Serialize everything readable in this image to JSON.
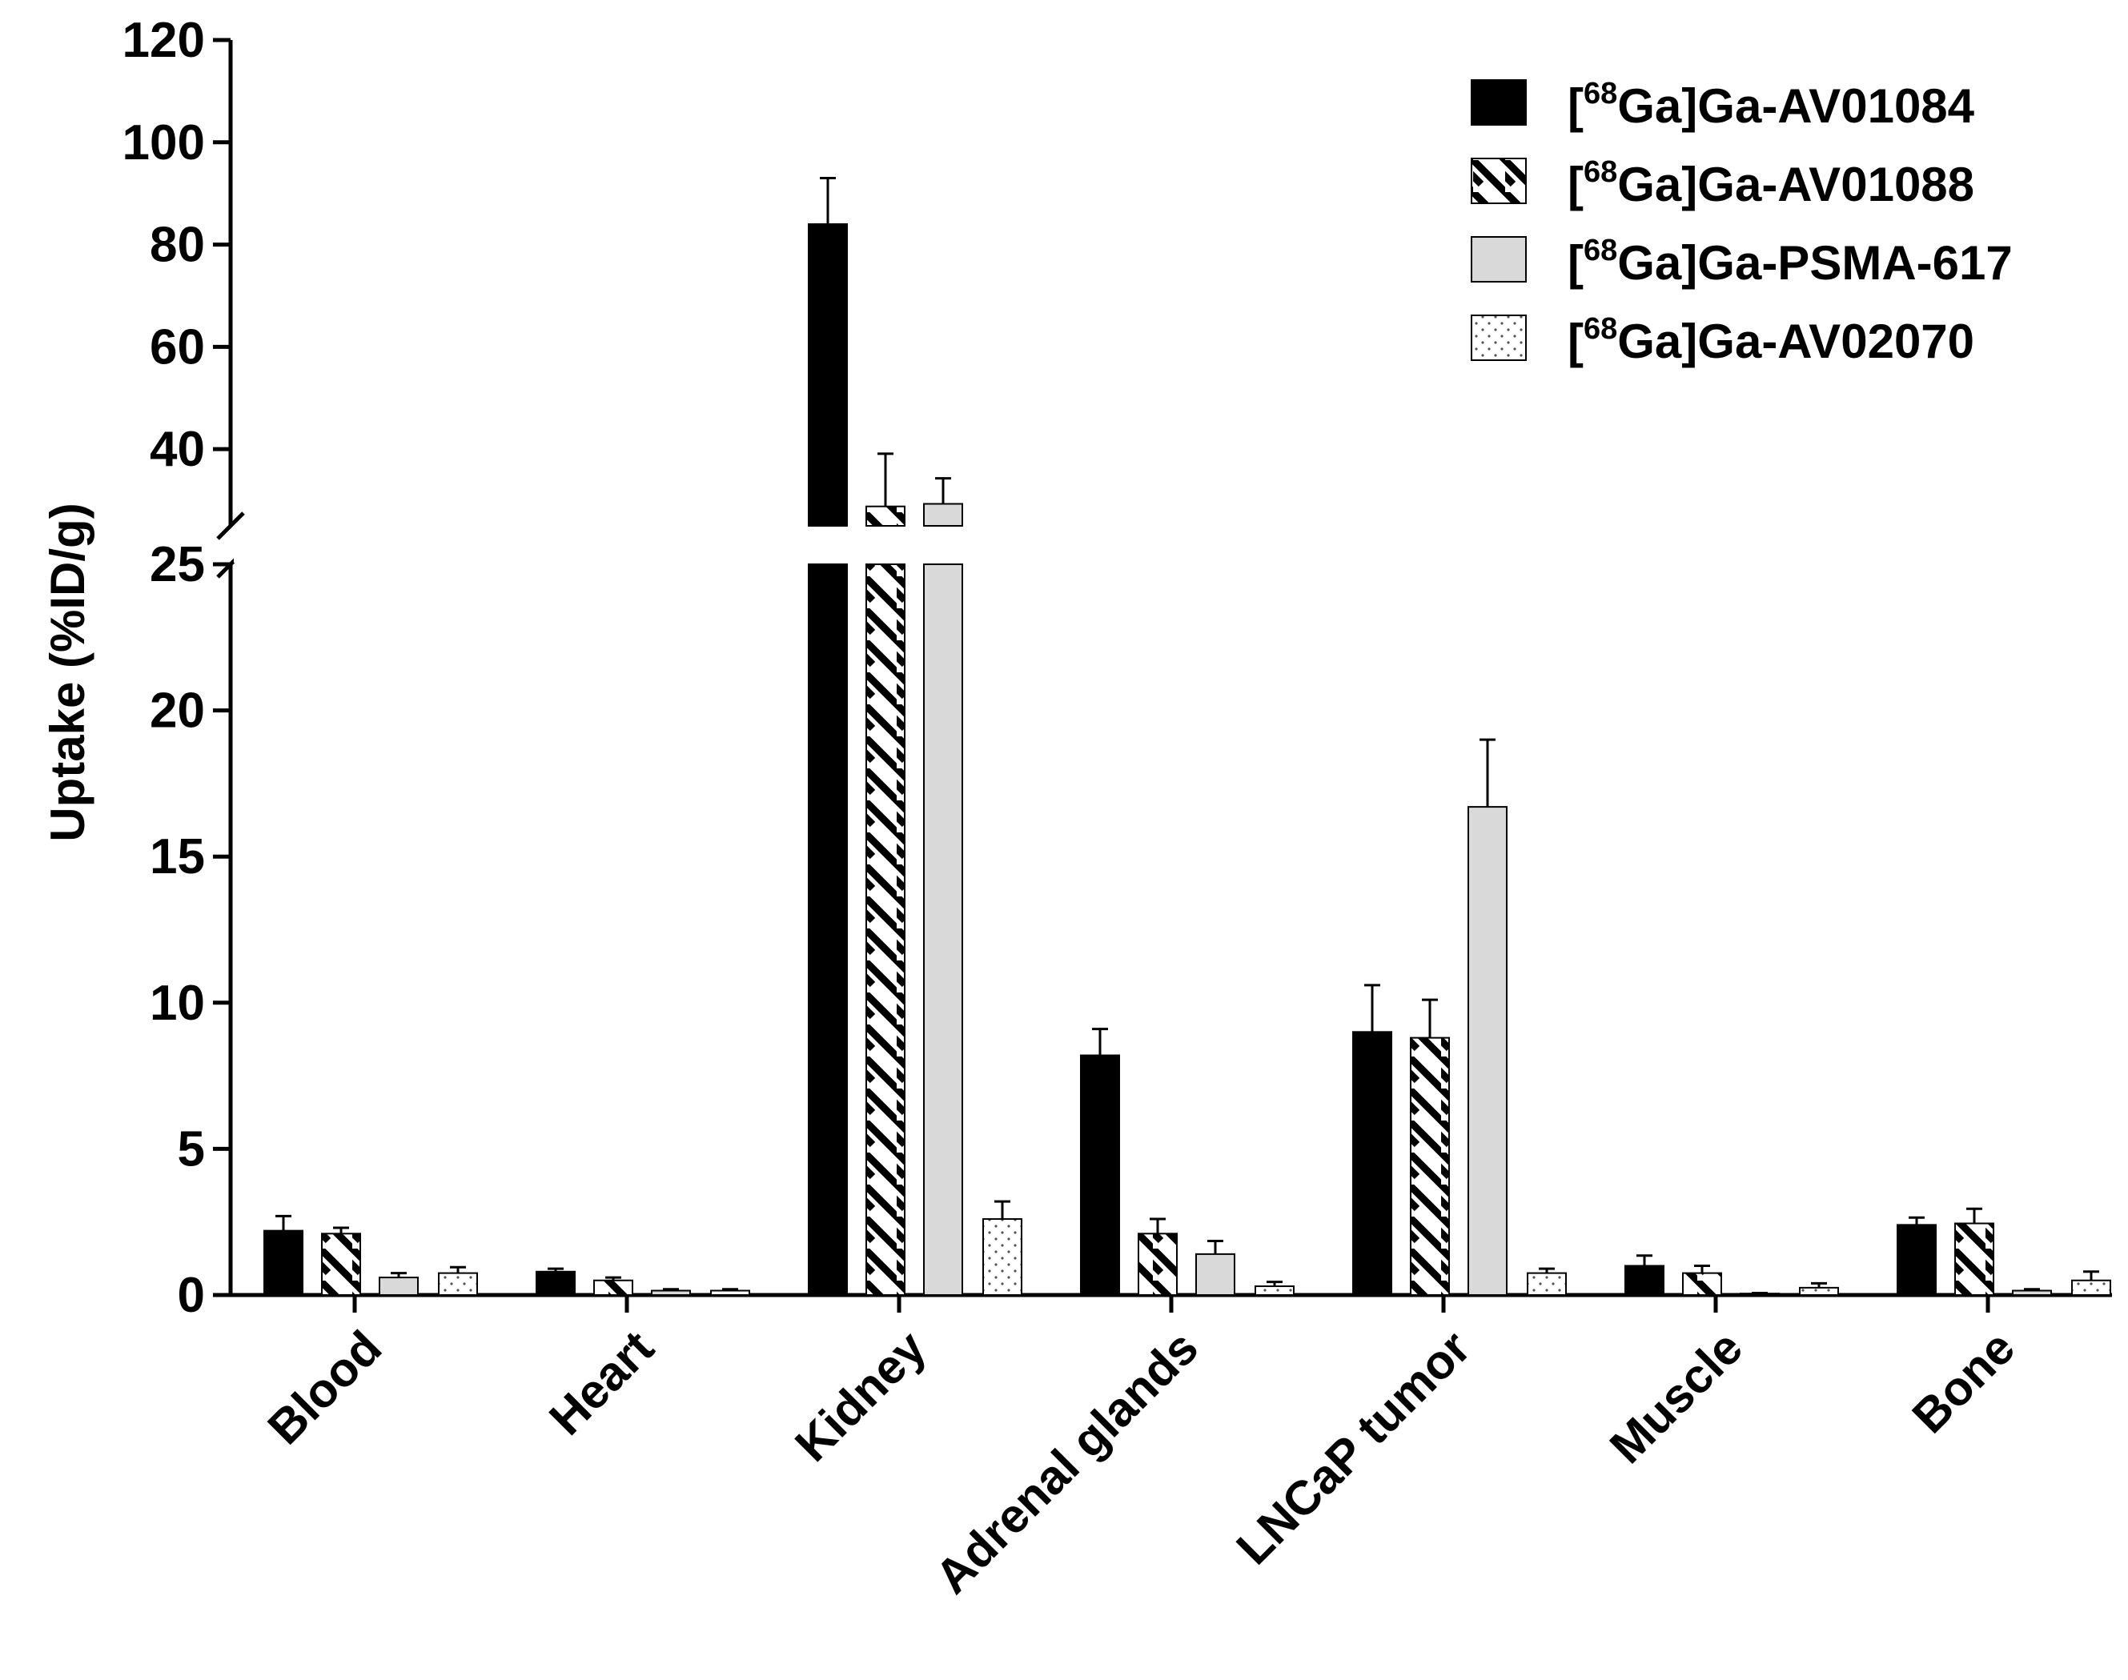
{
  "chart_data": {
    "type": "bar",
    "title": "",
    "xlabel": "",
    "ylabel": "Uptake (%ID/g)",
    "y_axis_break": {
      "lower_range": [
        0,
        25
      ],
      "upper_range": [
        25,
        120
      ],
      "lower_ticks": [
        "0",
        "5",
        "10",
        "15",
        "20",
        "25"
      ],
      "upper_ticks": [
        "40",
        "60",
        "80",
        "100",
        "120"
      ]
    },
    "categories": [
      "Blood",
      "Heart",
      "Kidney",
      "Adrenal glands",
      "LNCaP tumor",
      "Muscle",
      "Bone"
    ],
    "series": [
      {
        "sup": "68",
        "name": "[68Ga]Ga-AV01084",
        "label_rest": "Ga]Ga-AV01084",
        "pattern": "solid-black",
        "values": [
          2.2,
          0.8,
          84.0,
          8.2,
          9.0,
          1.0,
          2.4
        ],
        "errors": [
          0.5,
          0.1,
          9.0,
          0.9,
          1.6,
          0.35,
          0.25
        ]
      },
      {
        "sup": "68",
        "name": "[68Ga]Ga-AV01088",
        "label_rest": "Ga]Ga-AV01088",
        "pattern": "diagonal-stripes",
        "values": [
          2.1,
          0.5,
          28.8,
          2.1,
          8.8,
          0.75,
          2.45
        ],
        "errors": [
          0.2,
          0.1,
          10.3,
          0.5,
          1.3,
          0.25,
          0.5
        ]
      },
      {
        "sup": "68",
        "name": "[68Ga]Ga-PSMA-617",
        "label_rest": "Ga]Ga-PSMA-617",
        "pattern": "light-gray",
        "values": [
          0.6,
          0.15,
          29.3,
          1.4,
          16.7,
          0.05,
          0.15
        ],
        "errors": [
          0.15,
          0.05,
          5.0,
          0.45,
          2.3,
          0.02,
          0.05
        ]
      },
      {
        "sup": "68",
        "name": "[68Ga]Ga-AV02070",
        "label_rest": "Ga]Ga-AV02070",
        "pattern": "dotted",
        "values": [
          0.75,
          0.15,
          2.6,
          0.3,
          0.75,
          0.25,
          0.5
        ],
        "errors": [
          0.2,
          0.05,
          0.6,
          0.15,
          0.15,
          0.15,
          0.3
        ]
      }
    ],
    "legend_position": "top-right"
  }
}
